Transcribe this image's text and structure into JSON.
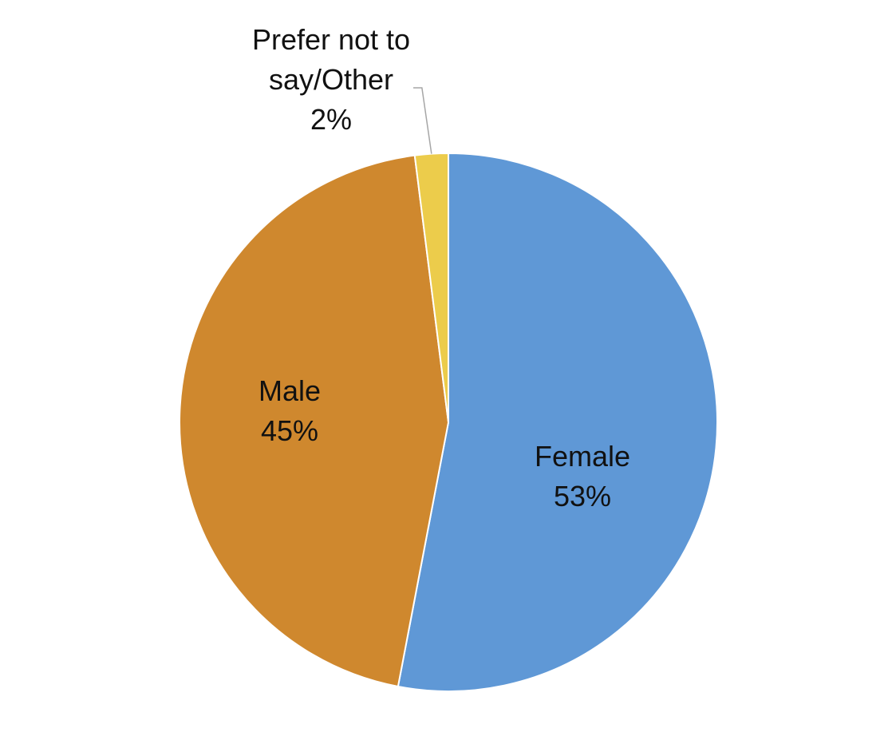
{
  "chart_data": {
    "type": "pie",
    "categories": [
      "Female",
      "Male",
      "Prefer not to say/Other"
    ],
    "values": [
      53,
      45,
      2
    ],
    "value_labels": [
      "53%",
      "45%",
      "2%"
    ],
    "colors": [
      "#5f98d6",
      "#cf882e",
      "#eccc4b"
    ]
  }
}
